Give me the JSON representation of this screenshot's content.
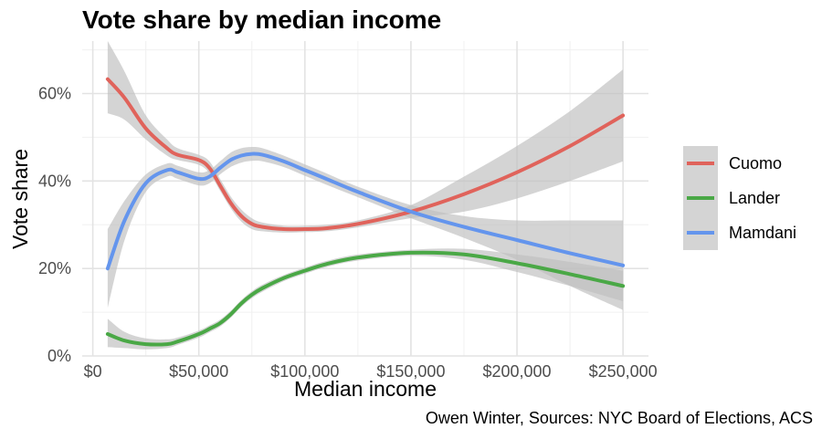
{
  "chart_data": {
    "type": "line",
    "title": "Vote share by median income",
    "caption": "Owen Winter, Sources: NYC Board of Elections, ACS",
    "xlabel": "Median income",
    "ylabel": "Vote share",
    "xlim": [
      -5000,
      262000
    ],
    "ylim": [
      0,
      0.72
    ],
    "x_ticks": [
      0,
      50000,
      100000,
      150000,
      200000,
      250000
    ],
    "x_tick_labels": [
      "$0",
      "$50,000",
      "$100,000",
      "$150,000",
      "$200,000",
      "$250,000"
    ],
    "y_ticks": [
      0,
      0.2,
      0.4,
      0.6
    ],
    "y_tick_labels": [
      "0%",
      "20%",
      "40%",
      "60%"
    ],
    "grid": true,
    "legend_position": "right",
    "confidence_band_color": "#bfbfbf",
    "x": [
      7000,
      15000,
      25000,
      35000,
      40000,
      50000,
      55000,
      60000,
      65000,
      70000,
      75000,
      80000,
      90000,
      100000,
      110000,
      125000,
      150000,
      175000,
      200000,
      225000,
      250000
    ],
    "series": [
      {
        "name": "Cuomo",
        "color": "#e0635b",
        "values": [
          0.633,
          0.59,
          0.52,
          0.475,
          0.46,
          0.448,
          0.43,
          0.39,
          0.35,
          0.32,
          0.302,
          0.295,
          0.29,
          0.29,
          0.292,
          0.302,
          0.33,
          0.37,
          0.42,
          0.48,
          0.55
        ],
        "upper": [
          0.72,
          0.65,
          0.55,
          0.495,
          0.475,
          0.46,
          0.445,
          0.405,
          0.365,
          0.335,
          0.315,
          0.305,
          0.298,
          0.298,
          0.3,
          0.31,
          0.345,
          0.41,
          0.48,
          0.56,
          0.655
        ],
        "lower": [
          0.555,
          0.54,
          0.495,
          0.458,
          0.448,
          0.437,
          0.418,
          0.378,
          0.338,
          0.307,
          0.29,
          0.285,
          0.282,
          0.283,
          0.285,
          0.294,
          0.315,
          0.33,
          0.36,
          0.4,
          0.445
        ]
      },
      {
        "name": "Lander",
        "color": "#4aa846",
        "values": [
          0.05,
          0.035,
          0.027,
          0.027,
          0.033,
          0.05,
          0.062,
          0.075,
          0.095,
          0.12,
          0.14,
          0.155,
          0.178,
          0.195,
          0.21,
          0.225,
          0.236,
          0.232,
          0.212,
          0.187,
          0.16
        ],
        "upper": [
          0.085,
          0.055,
          0.04,
          0.038,
          0.042,
          0.058,
          0.07,
          0.083,
          0.103,
          0.128,
          0.148,
          0.163,
          0.185,
          0.202,
          0.217,
          0.232,
          0.243,
          0.245,
          0.232,
          0.215,
          0.195
        ],
        "lower": [
          0.02,
          0.018,
          0.015,
          0.018,
          0.025,
          0.042,
          0.054,
          0.067,
          0.087,
          0.112,
          0.132,
          0.147,
          0.171,
          0.188,
          0.203,
          0.218,
          0.229,
          0.22,
          0.192,
          0.16,
          0.125
        ]
      },
      {
        "name": "Mamdani",
        "color": "#6495ed",
        "values": [
          0.2,
          0.31,
          0.395,
          0.425,
          0.42,
          0.405,
          0.41,
          0.43,
          0.448,
          0.458,
          0.462,
          0.46,
          0.445,
          0.425,
          0.405,
          0.375,
          0.33,
          0.295,
          0.265,
          0.235,
          0.207
        ],
        "upper": [
          0.29,
          0.355,
          0.415,
          0.44,
          0.435,
          0.42,
          0.425,
          0.445,
          0.465,
          0.475,
          0.478,
          0.475,
          0.458,
          0.438,
          0.418,
          0.387,
          0.345,
          0.32,
          0.31,
          0.31,
          0.31
        ],
        "lower": [
          0.11,
          0.265,
          0.375,
          0.41,
          0.405,
          0.39,
          0.395,
          0.415,
          0.432,
          0.442,
          0.446,
          0.445,
          0.432,
          0.412,
          0.392,
          0.363,
          0.315,
          0.27,
          0.22,
          0.16,
          0.105
        ]
      }
    ]
  }
}
